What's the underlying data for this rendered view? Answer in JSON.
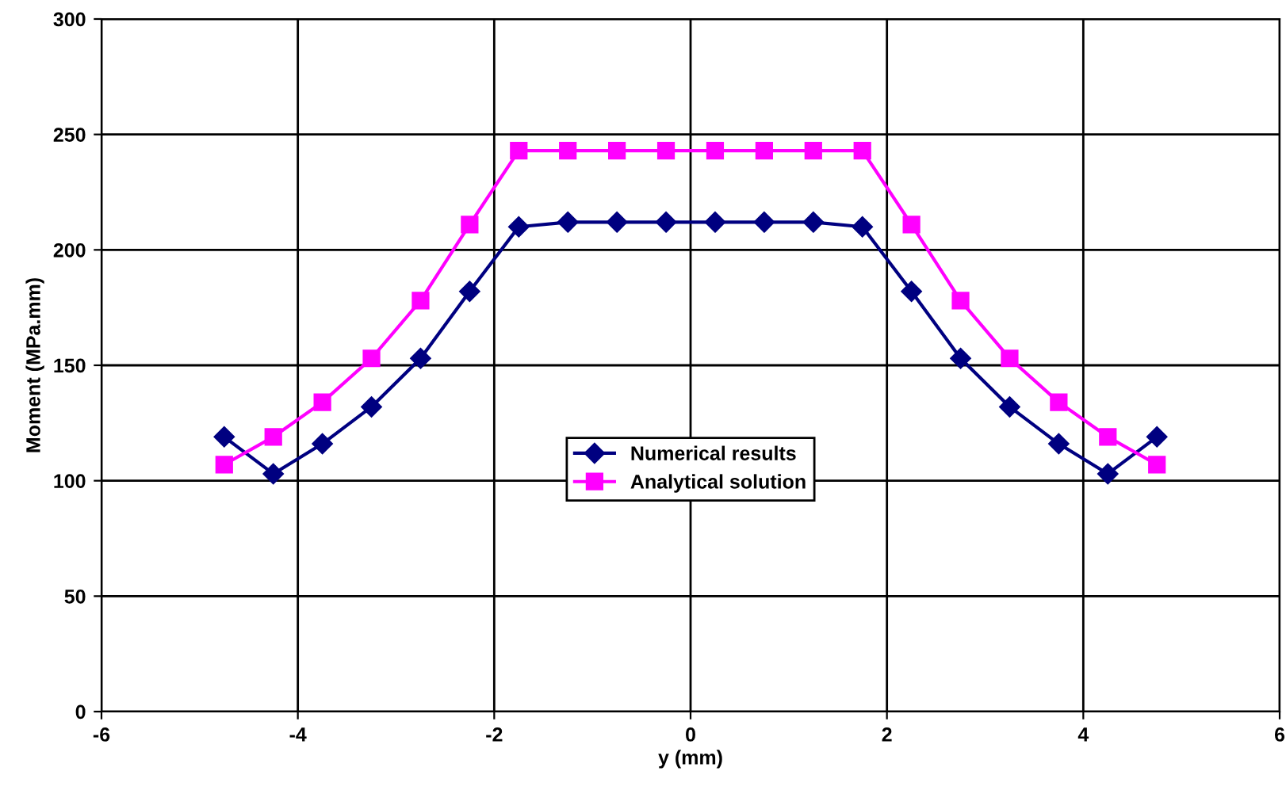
{
  "chart_data": {
    "type": "line",
    "xlabel": "y (mm)",
    "ylabel": "Moment (MPa.mm)",
    "x": [
      -4.75,
      -4.25,
      -3.75,
      -3.25,
      -2.75,
      -2.25,
      -1.75,
      -1.25,
      -0.75,
      -0.25,
      0.25,
      0.75,
      1.25,
      1.75,
      2.25,
      2.75,
      3.25,
      3.75,
      4.25,
      4.75
    ],
    "series": [
      {
        "name": "Numerical results",
        "color": "#000080",
        "marker": "diamond",
        "values": [
          119,
          103,
          116,
          132,
          153,
          182,
          210,
          212,
          212,
          212,
          212,
          212,
          212,
          210,
          182,
          153,
          132,
          116,
          103,
          119
        ]
      },
      {
        "name": "Analytical solution",
        "color": "#ff00ff",
        "marker": "square",
        "values": [
          107,
          119,
          134,
          153,
          178,
          211,
          243,
          243,
          243,
          243,
          243,
          243,
          243,
          243,
          211,
          178,
          153,
          134,
          119,
          107
        ]
      }
    ],
    "xlim": [
      -6,
      6
    ],
    "xticks": [
      -6,
      -4,
      -2,
      0,
      2,
      4,
      6
    ],
    "ylim": [
      0,
      300
    ],
    "yticks": [
      0,
      50,
      100,
      150,
      200,
      250,
      300
    ],
    "grid": true,
    "legend": "center",
    "line_style": "solid"
  }
}
